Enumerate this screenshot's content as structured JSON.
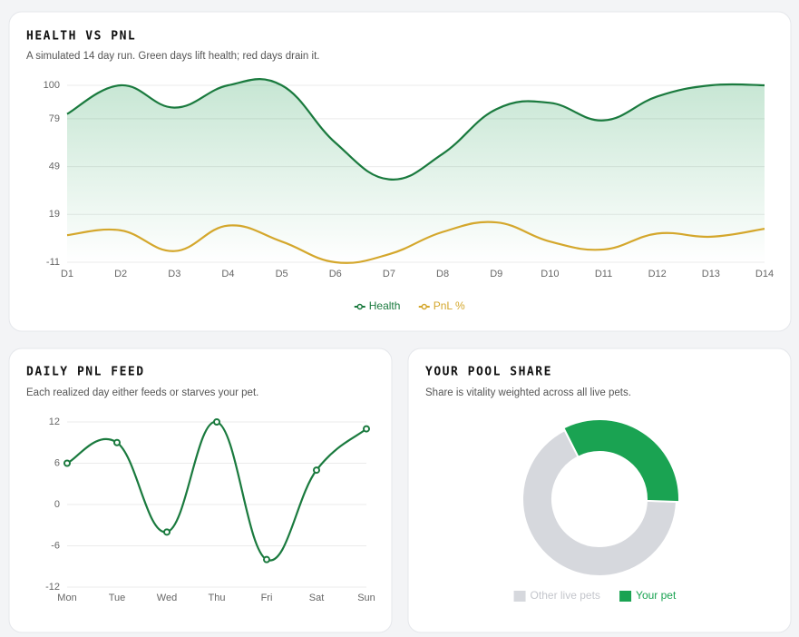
{
  "chart_data": [
    {
      "type": "line",
      "title": "HEALTH VS PNL",
      "subtitle": "A simulated 14 day run. Green days lift health; red days drain it.",
      "categories": [
        "D1",
        "D2",
        "D3",
        "D4",
        "D5",
        "D6",
        "D7",
        "D8",
        "D9",
        "D10",
        "D11",
        "D12",
        "D13",
        "D14"
      ],
      "series": [
        {
          "name": "Health",
          "color": "#1a7a3e",
          "values": [
            82,
            100,
            86,
            100,
            100,
            64,
            41,
            57,
            85,
            89,
            78,
            93,
            100,
            100
          ]
        },
        {
          "name": "PnL %",
          "color": "#d4a72c",
          "values": [
            6,
            9,
            -4,
            12,
            2,
            -11,
            -6,
            8,
            14,
            2,
            -3,
            7,
            5,
            10
          ]
        }
      ],
      "ylim": [
        -11,
        100
      ],
      "yticks": [
        100,
        79,
        49,
        19,
        -11
      ],
      "grid": true,
      "legend": "bottom",
      "fill_first": true
    },
    {
      "type": "line",
      "title": "DAILY PNL FEED",
      "subtitle": "Each realized day either feeds or starves your pet.",
      "categories": [
        "Mon",
        "Tue",
        "Wed",
        "Thu",
        "Fri",
        "Sat",
        "Sun"
      ],
      "values": [
        6,
        9,
        -4,
        12,
        -8,
        5,
        11
      ],
      "color": "#1a7a3e",
      "ylim": [
        -12,
        12
      ],
      "yticks": [
        12,
        6,
        0,
        -6,
        -12
      ],
      "grid": true,
      "markers": true
    },
    {
      "type": "doughnut",
      "title": "YOUR POOL SHARE",
      "subtitle": "Share is vitality weighted across all live pets.",
      "categories": [
        "Other live pets",
        "Your pet"
      ],
      "values": [
        67,
        33
      ],
      "colors": [
        "#d6d8dd",
        "#1aa352"
      ],
      "legend": "bottom"
    }
  ]
}
